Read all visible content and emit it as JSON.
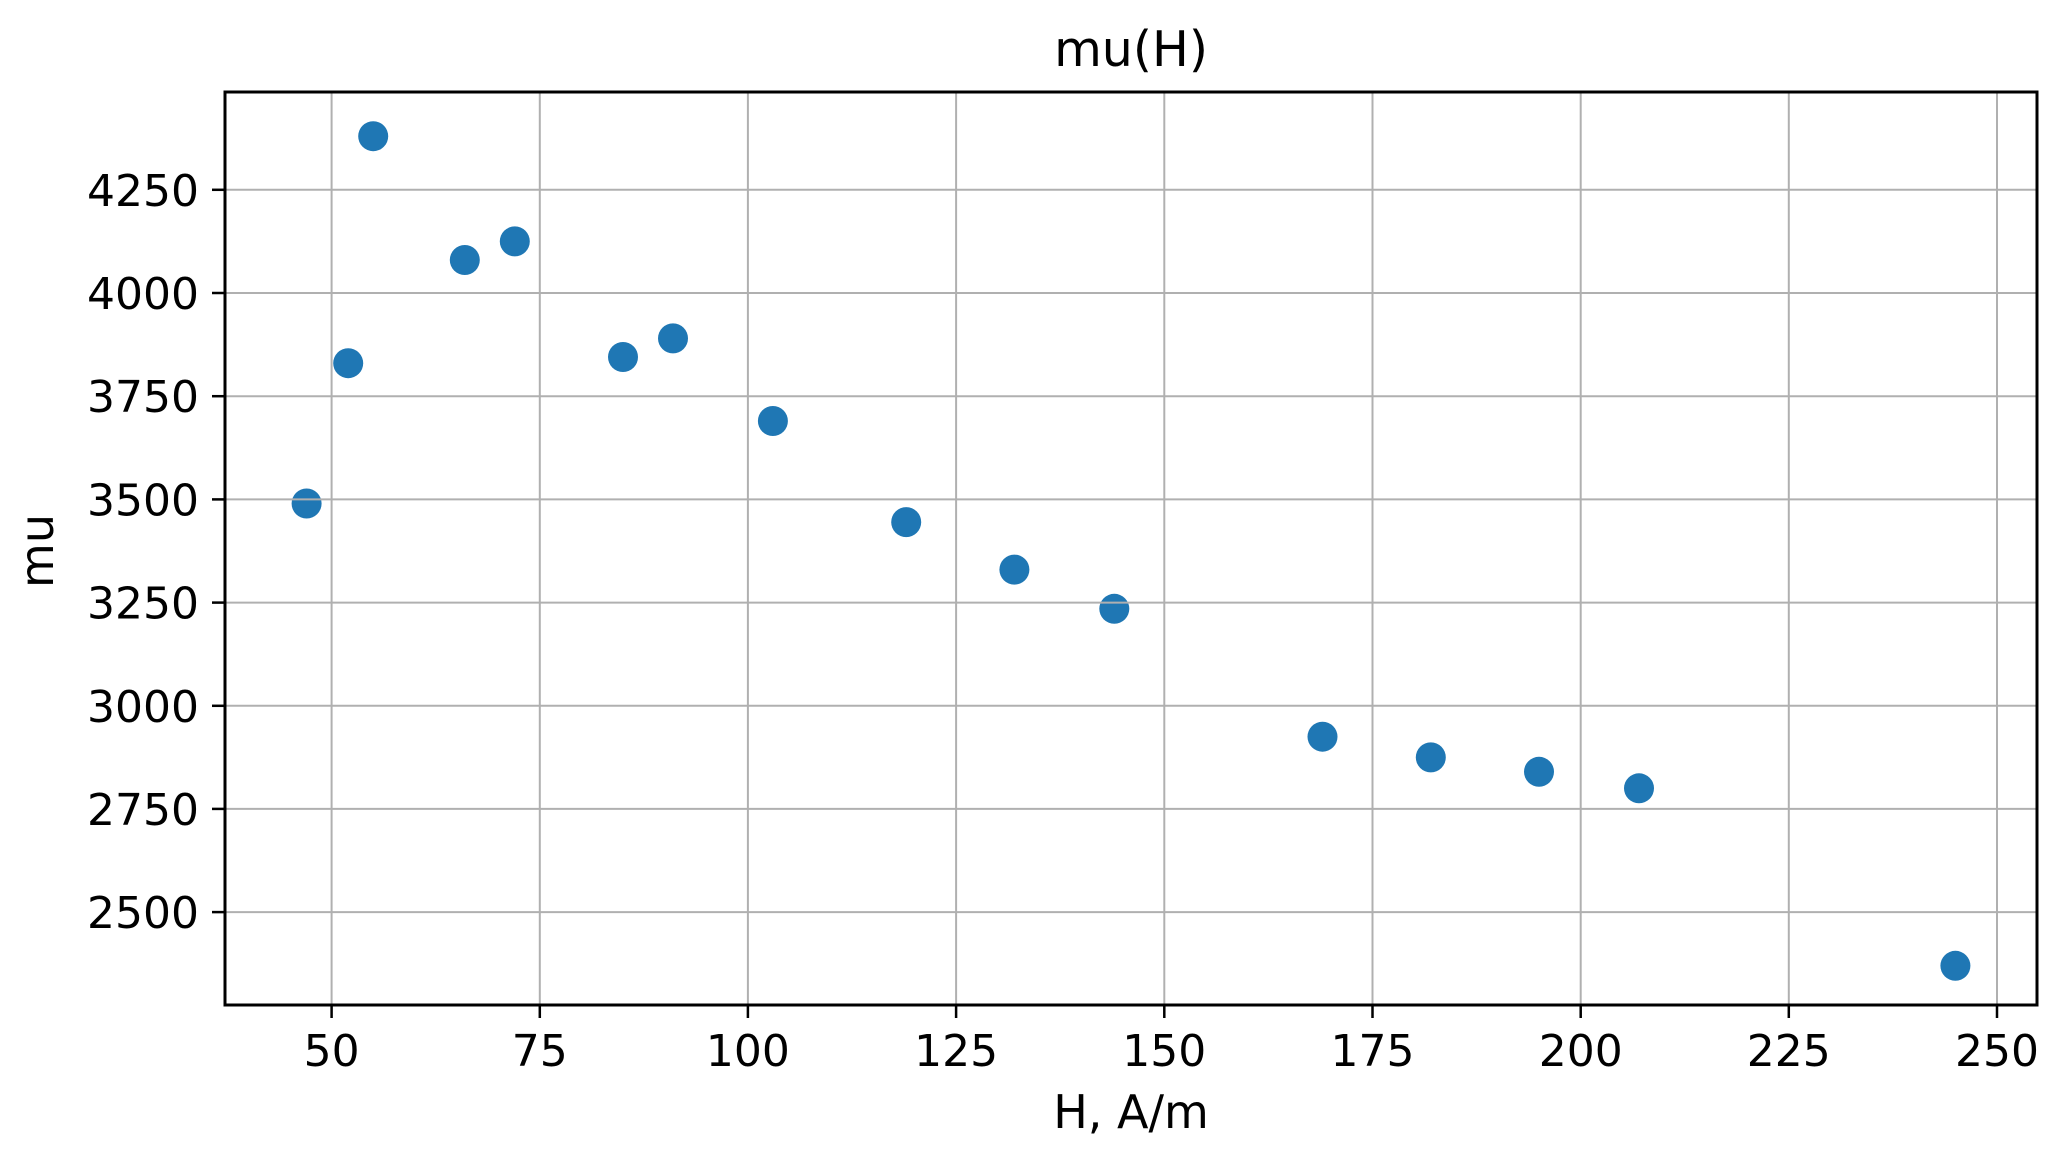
{
  "page": {
    "background": "#ffffff"
  },
  "chart_data": {
    "type": "scatter",
    "title": "mu(H)",
    "xlabel": "H, A/m",
    "ylabel": "mu",
    "points": [
      {
        "x": 47,
        "y": 3490
      },
      {
        "x": 52,
        "y": 3830
      },
      {
        "x": 55,
        "y": 4380
      },
      {
        "x": 66,
        "y": 4080
      },
      {
        "x": 72,
        "y": 4125
      },
      {
        "x": 85,
        "y": 3845
      },
      {
        "x": 91,
        "y": 3890
      },
      {
        "x": 103,
        "y": 3690
      },
      {
        "x": 119,
        "y": 3445
      },
      {
        "x": 132,
        "y": 3330
      },
      {
        "x": 144,
        "y": 3235
      },
      {
        "x": 169,
        "y": 2925
      },
      {
        "x": 182,
        "y": 2875
      },
      {
        "x": 195,
        "y": 2840
      },
      {
        "x": 207,
        "y": 2800
      },
      {
        "x": 245,
        "y": 2370
      }
    ],
    "xticks": [
      50,
      75,
      100,
      125,
      150,
      175,
      200,
      225,
      250
    ],
    "yticks": [
      2500,
      2750,
      3000,
      3250,
      3500,
      3750,
      4000,
      4250
    ],
    "xlim": [
      37.2,
      254.8
    ],
    "ylim": [
      2275,
      4487
    ],
    "grid": true,
    "grid_over_points": true,
    "legend": "none",
    "marker_color": "#1f77b4",
    "grid_color": "#b0b0b0",
    "spine_color": "#000000",
    "text_color": "#000000"
  }
}
